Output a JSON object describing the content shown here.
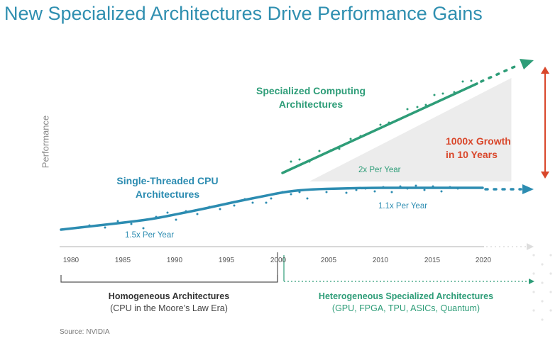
{
  "title": "New Specialized Architectures Drive Performance Gains",
  "source": "Source: NVIDIA",
  "colors": {
    "title": "#2f8fb0",
    "cpu": "#2c8cb1",
    "specialized": "#2e9d78",
    "growth": "#d9472b",
    "growth_band": "#ececec",
    "axis": "#cccccc"
  },
  "chart_data": {
    "type": "line",
    "title": "New Specialized Architectures Drive Performance Gains",
    "ylabel": "Performance",
    "xlabel": "",
    "xlim": [
      1978,
      2025
    ],
    "x_ticks": [
      "1980",
      "1985",
      "1990",
      "1995",
      "2000",
      "2005",
      "2010",
      "2015",
      "2020"
    ],
    "grid": false,
    "legend": "none",
    "series": [
      {
        "name": "Single-Threaded CPU Architectures",
        "rate_label": "1.5x Per Year",
        "x": [
          1979,
          1984,
          1989,
          1994,
          1999,
          2001
        ],
        "y": [
          0.1,
          0.16,
          0.26,
          0.39,
          0.52,
          0.56
        ],
        "color": "#2c8cb1"
      },
      {
        "name": "Single-Threaded CPU Architectures",
        "rate_label": "1.1x Per Year",
        "x": [
          2001,
          2005,
          2010,
          2015,
          2019
        ],
        "y": [
          0.56,
          0.62,
          0.65,
          0.66,
          0.66
        ],
        "color": "#2c8cb1"
      },
      {
        "name": "Specialized Computing Architectures",
        "rate_label": "2x Per Year",
        "x": [
          2001,
          2005,
          2010,
          2015,
          2019
        ],
        "y": [
          0.82,
          1.1,
          1.45,
          1.8,
          2.08
        ],
        "color": "#2e9d78"
      }
    ],
    "annotations": [
      {
        "text": "1000x Growth",
        "text2": "in 10 Years",
        "color": "#d9472b"
      }
    ],
    "eras": [
      {
        "title": "Homogeneous Architectures",
        "subtitle": "(CPU in the Moore's Law Era)",
        "x_range": [
          1979,
          2000
        ]
      },
      {
        "title": "Heterogeneous Specialized Architectures",
        "subtitle": "(GPU, FPGA, TPU, ASICs, Quantum)",
        "x_range": [
          2000,
          2025
        ]
      }
    ]
  },
  "labels": {
    "cpu_line1": "Single-Threaded CPU",
    "cpu_line2": "Architectures",
    "spec_line1": "Specialized Computing",
    "spec_line2": "Architectures",
    "growth_line1": "1000x Growth",
    "growth_line2": "in 10 Years",
    "rate_cpu_early": "1.5x Per Year",
    "rate_spec": "2x Per Year",
    "rate_cpu_late": "1.1x Per Year",
    "homo_title": "Homogeneous Architectures",
    "homo_sub": "(CPU in the Moore’s Law Era)",
    "hetero_title": "Heterogeneous Specialized Architectures",
    "hetero_sub": "(GPU, FPGA, TPU, ASICs, Quantum)"
  }
}
